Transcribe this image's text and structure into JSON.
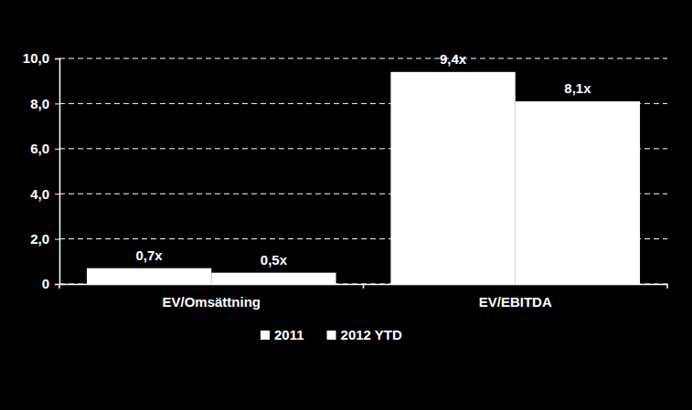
{
  "chart_data": {
    "type": "bar",
    "categories": [
      "EV/Omsättning",
      "EV/EBITDA"
    ],
    "series": [
      {
        "name": "2011",
        "color": "#ffffff",
        "values": [
          0.7,
          9.4
        ],
        "value_labels": [
          "0,7x",
          "9,4x"
        ]
      },
      {
        "name": "2012 YTD",
        "color": "#ffffff",
        "values": [
          0.5,
          8.1
        ],
        "value_labels": [
          "0,5x",
          "8,1x"
        ]
      }
    ],
    "ylim": [
      0,
      10
    ],
    "yticks": [
      0,
      {
        "value": 2,
        "label": "2,0"
      },
      {
        "value": 4,
        "label": "4,0"
      },
      {
        "value": 6,
        "label": "6,0"
      },
      {
        "value": 8,
        "label": "8,0"
      },
      {
        "value": 10,
        "label": "10,0"
      }
    ],
    "grid": true,
    "legend": "bottom",
    "data_labels": true
  }
}
